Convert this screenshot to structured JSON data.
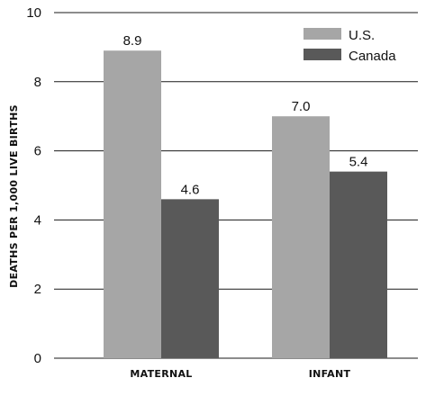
{
  "chart_data": {
    "type": "bar",
    "categories": [
      "MATERNAL",
      "INFANT"
    ],
    "series": [
      {
        "name": "U.S.",
        "values": [
          8.9,
          7.0
        ],
        "color": "#a6a6a6"
      },
      {
        "name": "Canada",
        "values": [
          4.6,
          5.4
        ],
        "color": "#595959"
      }
    ],
    "data_labels": [
      [
        "8.9",
        "7.0"
      ],
      [
        "4.6",
        "5.4"
      ]
    ],
    "ylabel": "DEATHS PER 1,000 LIVE BIRTHS",
    "xlabel": "",
    "ylim": [
      0,
      10
    ],
    "yticks": [
      0,
      2,
      4,
      6,
      8,
      10
    ],
    "grid": true,
    "legend_position": "top-right"
  }
}
